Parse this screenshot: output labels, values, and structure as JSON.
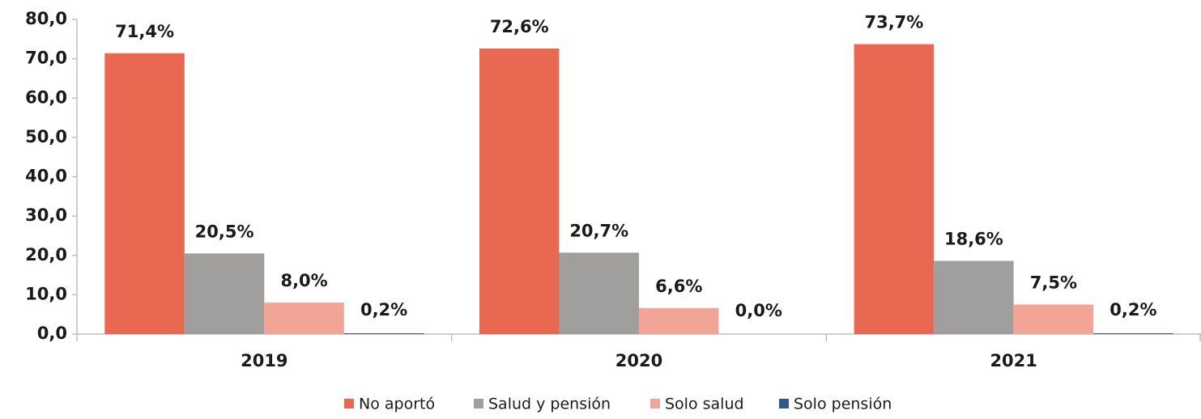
{
  "chart_data": {
    "type": "bar",
    "categories": [
      "2019",
      "2020",
      "2021"
    ],
    "series": [
      {
        "name": "No aportó",
        "color": "#e96852",
        "values": [
          71.4,
          72.6,
          73.7
        ],
        "value_labels": [
          "71,4%",
          "72,6%",
          "73,7%"
        ]
      },
      {
        "name": "Salud y pensión",
        "color": "#a09f9d",
        "values": [
          20.5,
          20.7,
          18.6
        ],
        "value_labels": [
          "20,5%",
          "20,7%",
          "18,6%"
        ]
      },
      {
        "name": "Solo salud",
        "color": "#f2a596",
        "values": [
          8.0,
          6.6,
          7.5
        ],
        "value_labels": [
          "8,0%",
          "6,6%",
          "7,5%"
        ]
      },
      {
        "name": "Solo pensión",
        "color": "#2e5a87",
        "values": [
          0.2,
          0.0,
          0.2
        ],
        "value_labels": [
          "0,2%",
          "0,0%",
          "0,2%"
        ]
      }
    ],
    "ylim": [
      0,
      80
    ],
    "yticks": [
      {
        "value": 0,
        "label": "0,0"
      },
      {
        "value": 10,
        "label": "10,0"
      },
      {
        "value": 20,
        "label": "20,0"
      },
      {
        "value": 30,
        "label": "30,0"
      },
      {
        "value": 40,
        "label": "40,0"
      },
      {
        "value": 50,
        "label": "50,0"
      },
      {
        "value": 60,
        "label": "60,0"
      },
      {
        "value": 70,
        "label": "70,0"
      },
      {
        "value": 80,
        "label": "80,0"
      }
    ],
    "legend": "bottom"
  }
}
